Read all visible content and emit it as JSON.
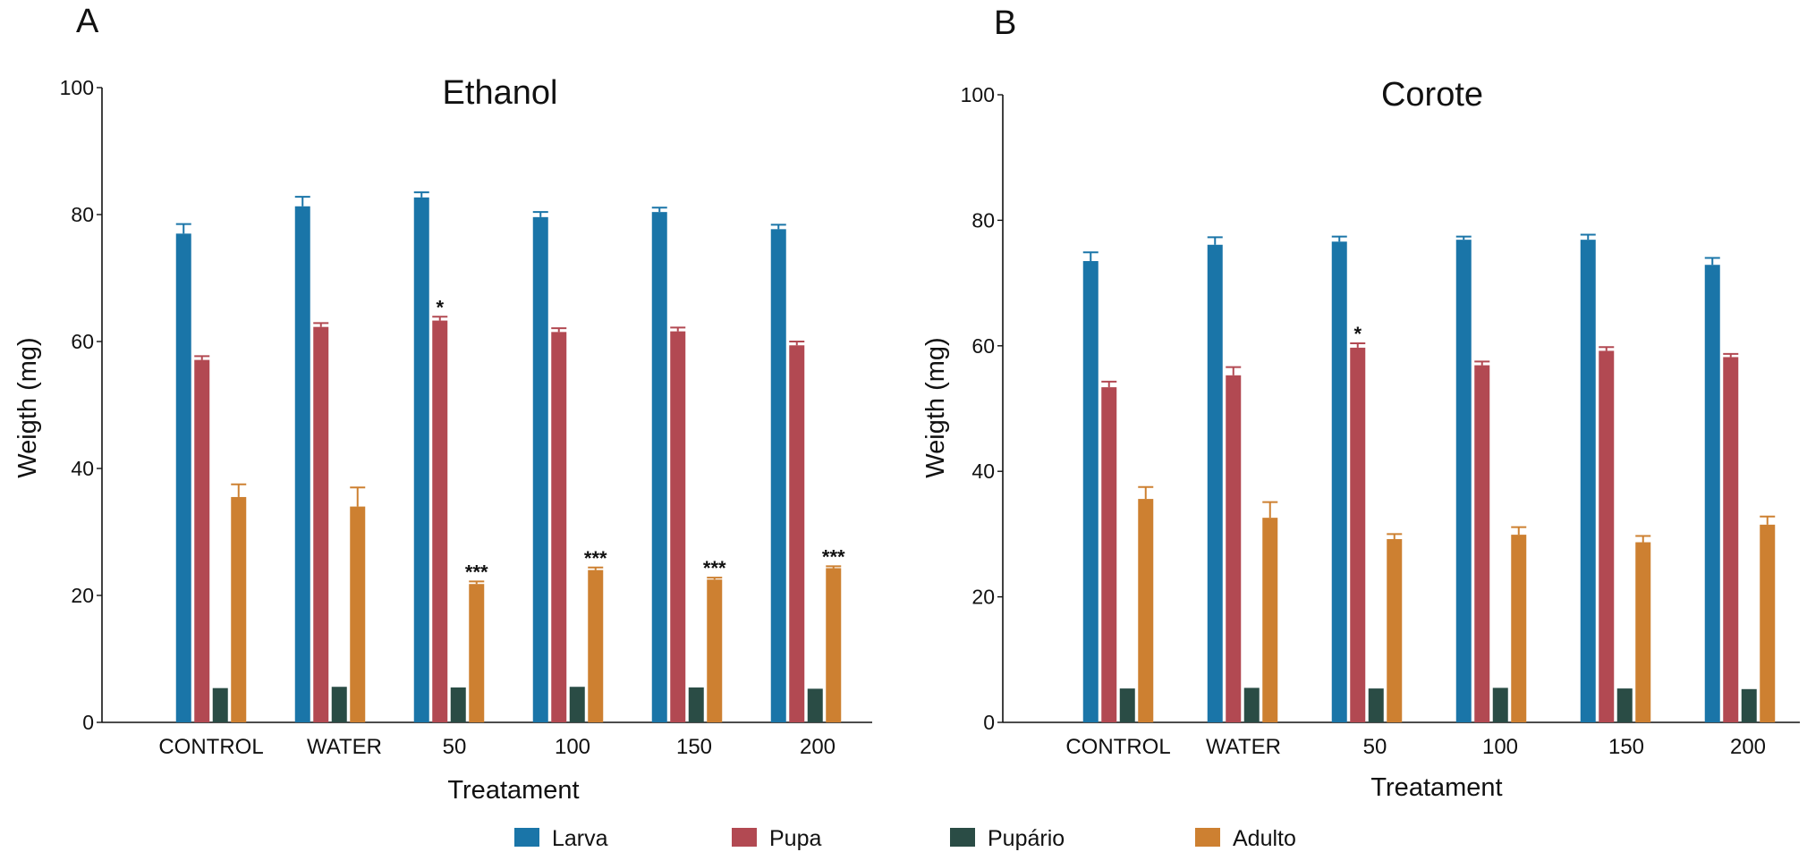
{
  "colors": {
    "Larva": "#1a75a8",
    "Pupa": "#b24952",
    "Pupário": "#2a4c45",
    "Adulto": "#cd8031"
  },
  "legend": {
    "position": "bottom",
    "items": [
      {
        "label": "Larva",
        "color": "#1a75a8"
      },
      {
        "label": "Pupa",
        "color": "#b24952"
      },
      {
        "label": "Pupário",
        "color": "#2a4c45"
      },
      {
        "label": "Adulto",
        "color": "#cd8031"
      }
    ]
  },
  "chart_data": [
    {
      "panel": "A",
      "type": "bar",
      "title": "Ethanol",
      "xlabel": "Treatament",
      "ylabel": "Weigth (mg)",
      "ylim": [
        0,
        100
      ],
      "yticks": [
        "0",
        "20",
        "40",
        "60",
        "80",
        "100"
      ],
      "grid": false,
      "categories": [
        "CONTROL",
        "WATER",
        "50",
        "100",
        "150",
        "200"
      ],
      "series": [
        {
          "name": "Larva",
          "values": [
            77,
            81.3,
            82.7,
            79.6,
            80.4,
            77.7
          ],
          "errors": [
            1.5,
            1.5,
            0.8,
            0.8,
            0.7,
            0.7
          ],
          "sig": [
            "",
            "",
            "",
            "",
            "",
            ""
          ]
        },
        {
          "name": "Pupa",
          "values": [
            57.1,
            62.3,
            63.3,
            61.5,
            61.6,
            59.4
          ],
          "errors": [
            0.6,
            0.6,
            0.6,
            0.6,
            0.6,
            0.6
          ],
          "sig": [
            "",
            "",
            "*",
            "",
            "",
            ""
          ]
        },
        {
          "name": "Pupário",
          "values": [
            5.4,
            5.6,
            5.5,
            5.6,
            5.5,
            5.3
          ],
          "errors": [
            0,
            0,
            0,
            0,
            0,
            0
          ],
          "sig": [
            "",
            "",
            "",
            "",
            "",
            ""
          ]
        },
        {
          "name": "Adulto",
          "values": [
            35.5,
            34,
            21.8,
            24,
            22.5,
            24.3
          ],
          "errors": [
            2,
            3,
            0.4,
            0.4,
            0.3,
            0.3
          ],
          "sig": [
            "",
            "",
            "***",
            "***",
            "***",
            "***"
          ]
        }
      ]
    },
    {
      "panel": "B",
      "type": "bar",
      "title": "Corote",
      "xlabel": "Treatament",
      "ylabel": "Weigth (mg)",
      "ylim": [
        0,
        100
      ],
      "yticks": [
        "0",
        "20",
        "40",
        "60",
        "80",
        "100"
      ],
      "grid": false,
      "categories": [
        "CONTROL",
        "WATER",
        "50",
        "100",
        "150",
        "200"
      ],
      "series": [
        {
          "name": "Larva",
          "values": [
            73.5,
            76.1,
            76.6,
            76.9,
            76.9,
            72.9
          ],
          "errors": [
            1.4,
            1.2,
            0.8,
            0.5,
            0.8,
            1.1
          ],
          "sig": [
            "",
            "",
            "",
            "",
            "",
            ""
          ]
        },
        {
          "name": "Pupa",
          "values": [
            53.4,
            55.3,
            59.7,
            56.9,
            59.2,
            58.2
          ],
          "errors": [
            0.9,
            1.3,
            0.7,
            0.6,
            0.6,
            0.5
          ],
          "sig": [
            "",
            "",
            "*",
            "",
            "",
            ""
          ]
        },
        {
          "name": "Pupário",
          "values": [
            5.4,
            5.5,
            5.4,
            5.5,
            5.4,
            5.3
          ],
          "errors": [
            0,
            0,
            0,
            0,
            0,
            0
          ],
          "sig": [
            "",
            "",
            "",
            "",
            "",
            ""
          ]
        },
        {
          "name": "Adulto",
          "values": [
            35.6,
            32.6,
            29.2,
            29.9,
            28.7,
            31.5
          ],
          "errors": [
            1.9,
            2.5,
            0.8,
            1.2,
            1.0,
            1.3
          ],
          "sig": [
            "",
            "",
            "",
            "",
            "",
            ""
          ]
        }
      ]
    }
  ]
}
